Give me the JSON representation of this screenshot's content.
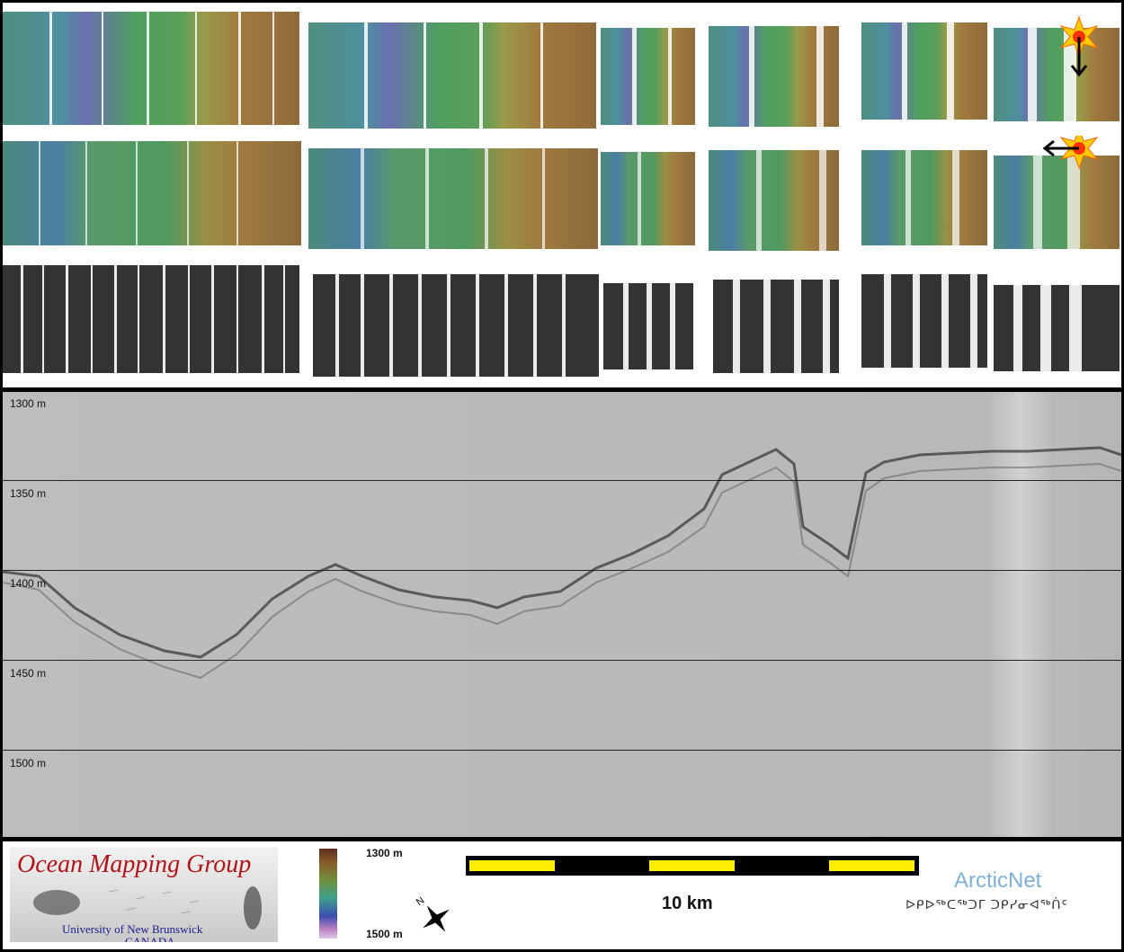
{
  "profile": {
    "depth_labels": [
      "1300 m",
      "1350 m",
      "1400 m",
      "1450 m",
      "1500 m"
    ]
  },
  "footer": {
    "logo_title": "Ocean Mapping Group",
    "logo_university": "University of New Brunswick",
    "logo_country": "CANADA",
    "colorbar_top": "1300 m",
    "colorbar_bottom": "1500 m",
    "scale_label": "10 km",
    "arcticnet": "ArcticNet",
    "inuktitut": "ᐅᑭᐅᖅᑕᖅᑐᒥ ᑐᑭᓯᓂᐊᖅᑏᑦ"
  },
  "colors": {
    "background": "#000000",
    "profile_gray": "#b9b9b9",
    "scale_yellow": "#ffee00",
    "logo_red": "#b0141a",
    "arcticnet_blue": "#7fb0d6"
  },
  "icons": [
    "sun-icon",
    "sun-icon",
    "north-arrow-icon"
  ]
}
